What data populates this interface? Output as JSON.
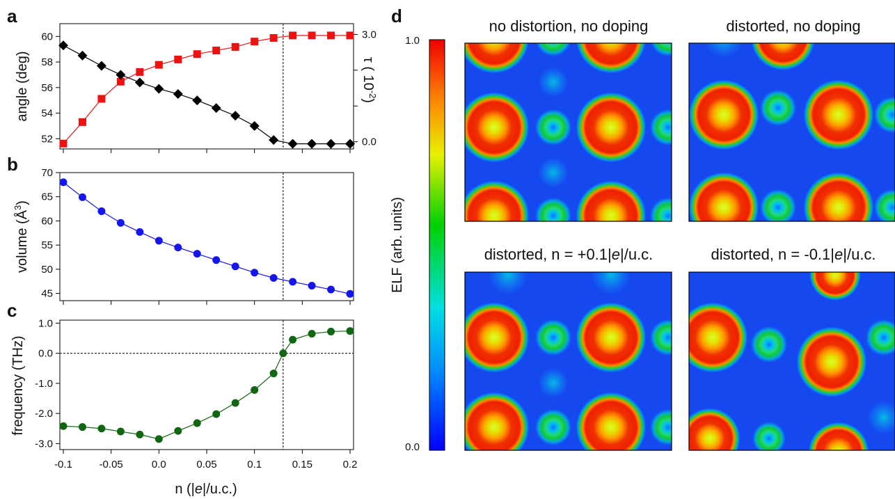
{
  "panel_labels": [
    "a",
    "b",
    "c",
    "d"
  ],
  "x_axis": {
    "label_prefix": "n (|",
    "label_italic": "e",
    "label_suffix": "|/u.c.)",
    "ticks": [
      "-0.1",
      "-0.05",
      "0.0",
      "0.05",
      "0.1",
      "0.15",
      "0.2"
    ]
  },
  "colorbar": {
    "label": "ELF (arb. units)",
    "max_label": "1.0",
    "min_label": "0.0",
    "range": [
      0,
      1
    ],
    "colormap": "rainbow (blue-cyan-green-yellow-red)"
  },
  "colors": {
    "angle": "#000000",
    "tau": "#ee1111",
    "volume": "#1515ee",
    "frequency": "#116611"
  },
  "chart_data": [
    {
      "type": "line",
      "panel": "a",
      "x": [
        -0.1,
        -0.08,
        -0.06,
        -0.04,
        -0.02,
        0.0,
        0.02,
        0.04,
        0.06,
        0.08,
        0.1,
        0.12,
        0.14,
        0.16,
        0.18,
        0.2
      ],
      "xlim": [
        -0.1,
        0.2
      ],
      "vline": 0.13,
      "ylabel": "angle (deg)",
      "ylim": [
        51.2,
        61
      ],
      "yticks": [
        "52",
        "54",
        "56",
        "58",
        "60"
      ],
      "y2label_pre": "τ  ( 10",
      "y2label_sup": "-2",
      "y2label_post": ")",
      "y2lim": [
        -0.2,
        3.3
      ],
      "y2ticks": [
        "0.0",
        "3.0"
      ],
      "series": [
        {
          "axis": "left",
          "marker": "diamond",
          "color": "#000000",
          "values": [
            59.3,
            58.5,
            57.7,
            57.0,
            56.4,
            55.9,
            55.5,
            55.0,
            54.4,
            53.8,
            53.0,
            51.9,
            51.6,
            51.6,
            51.6,
            51.6
          ]
        },
        {
          "axis": "right",
          "marker": "square",
          "color": "#ee1111",
          "values": [
            -0.05,
            0.55,
            1.2,
            1.68,
            1.95,
            2.15,
            2.3,
            2.45,
            2.55,
            2.65,
            2.8,
            2.9,
            2.97,
            2.97,
            2.97,
            2.97
          ]
        }
      ]
    },
    {
      "type": "line",
      "panel": "b",
      "x": [
        -0.1,
        -0.08,
        -0.06,
        -0.04,
        -0.02,
        0.0,
        0.02,
        0.04,
        0.06,
        0.08,
        0.1,
        0.12,
        0.14,
        0.16,
        0.18,
        0.2
      ],
      "xlim": [
        -0.1,
        0.2
      ],
      "vline": 0.13,
      "ylabel_pre": "volume (Å",
      "ylabel_sup": "3",
      "ylabel_post": ")",
      "ylim": [
        43.5,
        70
      ],
      "yticks": [
        "45",
        "50",
        "55",
        "60",
        "65",
        "70"
      ],
      "series": [
        {
          "marker": "circle",
          "color": "#1515ee",
          "values": [
            68.0,
            64.9,
            62.0,
            59.6,
            57.7,
            55.9,
            54.5,
            53.2,
            51.9,
            50.6,
            49.3,
            48.2,
            47.4,
            46.6,
            45.8,
            44.9
          ]
        }
      ]
    },
    {
      "type": "line",
      "panel": "c",
      "x": [
        -0.1,
        -0.08,
        -0.06,
        -0.04,
        -0.02,
        0.0,
        0.02,
        0.04,
        0.06,
        0.08,
        0.1,
        0.12,
        0.13,
        0.14,
        0.16,
        0.18,
        0.2
      ],
      "xlim": [
        -0.1,
        0.2
      ],
      "vline": 0.13,
      "hline": 0.0,
      "ylabel": "frequency (THz)",
      "ylim": [
        -3.2,
        1.1
      ],
      "yticks": [
        "-3.0",
        "-2.0",
        "-1.0",
        "0.0",
        "1.0"
      ],
      "series": [
        {
          "marker": "circle",
          "color": "#116611",
          "values": [
            -2.42,
            -2.45,
            -2.5,
            -2.6,
            -2.7,
            -2.85,
            -2.58,
            -2.32,
            -2.02,
            -1.65,
            -1.22,
            -0.67,
            0.0,
            0.45,
            0.65,
            0.72,
            0.74
          ]
        }
      ]
    },
    {
      "type": "heatmap",
      "panel": "d",
      "value_label": "ELF (arb. units)",
      "range": [
        0,
        1
      ],
      "maps": [
        {
          "title_pre": "no distortion, no doping",
          "title_it": "",
          "title_post": ""
        },
        {
          "title_pre": "distorted, no doping",
          "title_it": "",
          "title_post": ""
        },
        {
          "title_pre": "distorted, n = +0.1|",
          "title_it": "e",
          "title_post": "|/u.c."
        },
        {
          "title_pre": "distorted, n = -0.1|",
          "title_it": "e",
          "title_post": "|/u.c."
        }
      ]
    }
  ]
}
